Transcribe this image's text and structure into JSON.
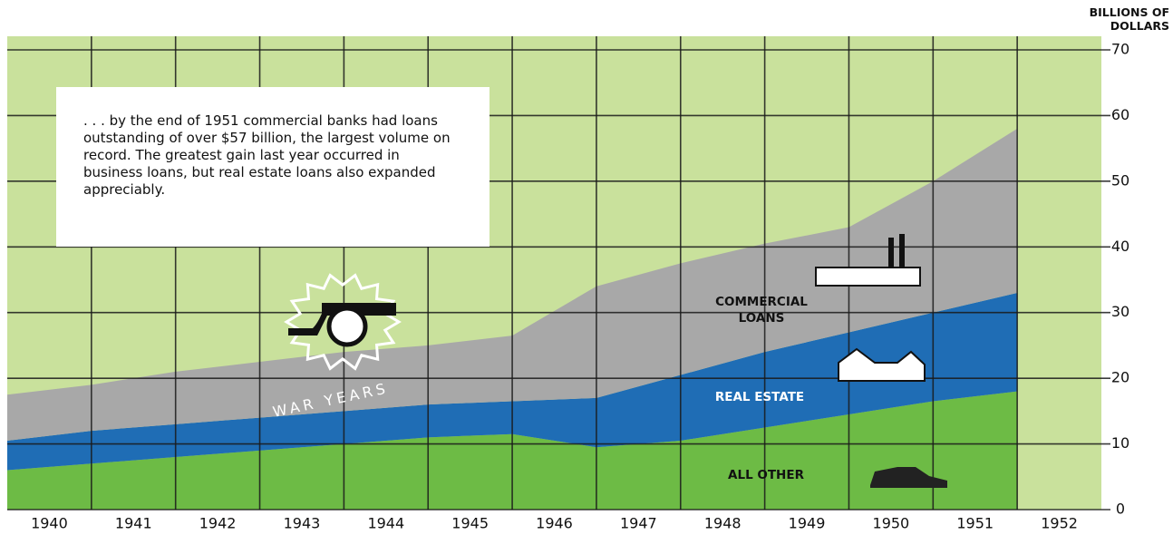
{
  "chart_data": {
    "type": "stacked-area",
    "ylabel": "BILLIONS OF DOLLARS",
    "x": [
      1939.5,
      1940.5,
      1941.5,
      1942.5,
      1943.5,
      1944.5,
      1945.5,
      1946.5,
      1947.5,
      1948.5,
      1949.5,
      1950.5,
      1951.5
    ],
    "series": [
      {
        "name": "ALL OTHER",
        "color": "#6dbb45",
        "values": [
          6,
          7,
          8,
          9,
          10,
          11,
          11.5,
          9.5,
          10.5,
          12.5,
          14.5,
          16.5,
          18
        ]
      },
      {
        "name": "REAL ESTATE",
        "color": "#1f6db5",
        "values": [
          4.5,
          5,
          5,
          5,
          5,
          5,
          5,
          7.5,
          10,
          11.5,
          12.5,
          13.5,
          15
        ]
      },
      {
        "name": "COMMERCIAL LOANS",
        "color": "#a8a8a8",
        "values": [
          7,
          7,
          8,
          8.5,
          9,
          9,
          10,
          17,
          17,
          16.5,
          16,
          20,
          25
        ]
      }
    ],
    "xlim": [
      1939.5,
      1952.5
    ],
    "xticks": [
      1940,
      1941,
      1942,
      1943,
      1944,
      1945,
      1946,
      1947,
      1948,
      1949,
      1950,
      1951,
      1952
    ],
    "ylim": [
      0,
      70
    ],
    "yticks": [
      0,
      10,
      20,
      30,
      40,
      50,
      60,
      70
    ],
    "grid": true,
    "background": "#c9e19c",
    "annotations": [
      "WAR YEARS",
      ". . . by the end of 1951 commercial banks had loans outstanding of over $57 billion, the largest volume on record. The greatest gain last year occurred in business loans, but real estate loans also expanded appreciably."
    ]
  }
}
